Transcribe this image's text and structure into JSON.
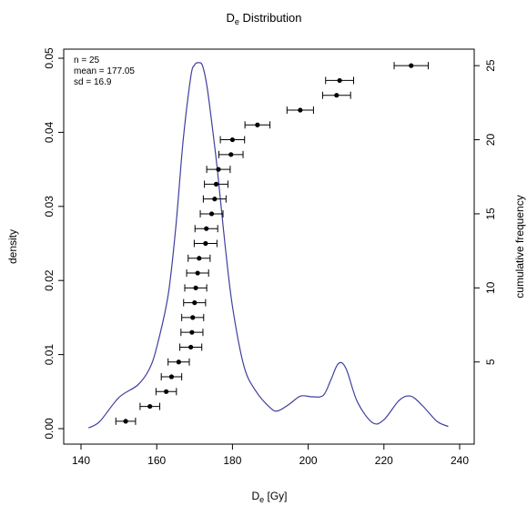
{
  "chart_data": {
    "type": "line",
    "title_main": "D",
    "title_sub": "e",
    "title_rest": " Distribution",
    "xlabel_main": "D",
    "xlabel_sub": "e",
    "xlabel_rest": " [Gy]",
    "ylabel_left": "density",
    "ylabel_right": "cumulative frequency",
    "stats": [
      "n = 25",
      "mean = 177.05",
      "sd = 16.9"
    ],
    "xlim": [
      140,
      240
    ],
    "ylim_left": [
      0,
      0.05
    ],
    "ylim_right": [
      0.5,
      25.5
    ],
    "x_ticks": [
      140,
      160,
      180,
      200,
      220,
      240
    ],
    "y_left_ticks": [
      0.0,
      0.01,
      0.02,
      0.03,
      0.04,
      0.05
    ],
    "y_left_tick_labels": [
      "0.00",
      "0.01",
      "0.02",
      "0.03",
      "0.04",
      "0.05"
    ],
    "y_right_ticks": [
      5,
      10,
      15,
      20,
      25
    ],
    "line_color": "#3f3f9e",
    "density": {
      "x": [
        142,
        145,
        150,
        155,
        158,
        160,
        163,
        165,
        167,
        169,
        170,
        171,
        172,
        173,
        174,
        176,
        178,
        180,
        183,
        186,
        190,
        192,
        195,
        198,
        201,
        204,
        206,
        208,
        210,
        213,
        217,
        220,
        224,
        227,
        230,
        234,
        237
      ],
      "y": [
        0.0001,
        0.001,
        0.0042,
        0.0059,
        0.008,
        0.011,
        0.018,
        0.027,
        0.039,
        0.0475,
        0.0491,
        0.0494,
        0.0491,
        0.047,
        0.0435,
        0.035,
        0.025,
        0.0165,
        0.0085,
        0.0052,
        0.0028,
        0.0024,
        0.0033,
        0.0044,
        0.0043,
        0.0045,
        0.0066,
        0.0088,
        0.0081,
        0.0036,
        0.0008,
        0.0012,
        0.0038,
        0.0044,
        0.0032,
        0.001,
        0.0003
      ]
    },
    "points": {
      "x": [
        151.8,
        158.2,
        162.5,
        163.9,
        165.8,
        169.0,
        169.3,
        169.5,
        170.0,
        170.3,
        170.8,
        171.2,
        172.9,
        173.1,
        174.5,
        175.3,
        175.7,
        176.3,
        179.6,
        180.0,
        186.6,
        197.9,
        207.5,
        208.3,
        227.2
      ],
      "err": [
        2.6,
        2.6,
        2.7,
        2.7,
        2.8,
        2.9,
        2.9,
        2.9,
        2.9,
        2.9,
        2.9,
        2.9,
        3.0,
        3.0,
        3.0,
        3.0,
        3.1,
        3.1,
        3.2,
        3.2,
        3.3,
        3.5,
        3.7,
        3.7,
        4.5
      ],
      "rank": [
        1,
        2,
        3,
        4,
        5,
        6,
        7,
        8,
        9,
        10,
        11,
        12,
        13,
        14,
        15,
        16,
        17,
        18,
        19,
        20,
        21,
        22,
        23,
        24,
        25
      ]
    }
  }
}
